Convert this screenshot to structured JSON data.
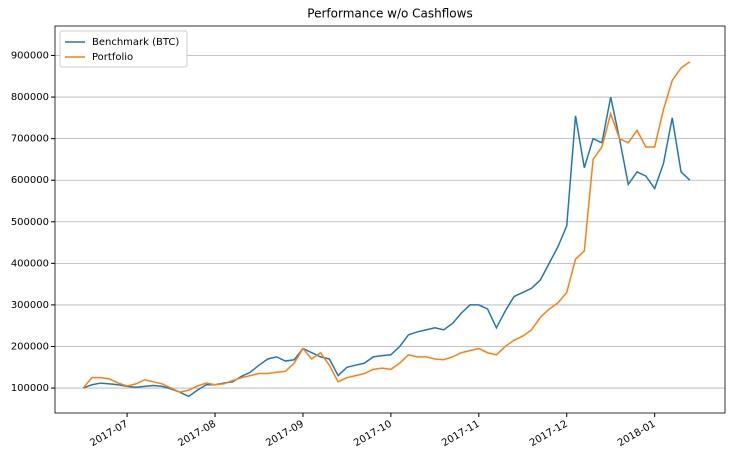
{
  "chart_data": {
    "type": "line",
    "title": "Performance w/o Cashflows",
    "x": [
      -0.5,
      -0.4,
      -0.3,
      -0.2,
      -0.1,
      0,
      0.1,
      0.2,
      0.3,
      0.4,
      0.5,
      0.6,
      0.7,
      0.8,
      0.9,
      1,
      1.1,
      1.2,
      1.3,
      1.4,
      1.5,
      1.6,
      1.7,
      1.8,
      1.9,
      2,
      2.1,
      2.2,
      2.3,
      2.4,
      2.5,
      2.6,
      2.7,
      2.8,
      2.9,
      3,
      3.1,
      3.2,
      3.3,
      3.4,
      3.5,
      3.6,
      3.7,
      3.8,
      3.9,
      4,
      4.1,
      4.2,
      4.3,
      4.4,
      4.5,
      4.6,
      4.7,
      4.8,
      4.9,
      5,
      5.1,
      5.2,
      5.3,
      5.4,
      5.5,
      5.6,
      5.7,
      5.8,
      5.9,
      6,
      6.1,
      6.2,
      6.3,
      6.4
    ],
    "series": [
      {
        "name": "Benchmark (BTC)",
        "color": "#1f77b4",
        "values": [
          100000,
          108000,
          112000,
          110000,
          108000,
          104000,
          102000,
          104000,
          106000,
          104000,
          98000,
          90000,
          80000,
          95000,
          108000,
          108000,
          112000,
          115000,
          128000,
          138000,
          155000,
          170000,
          175000,
          165000,
          168000,
          195000,
          185000,
          175000,
          170000,
          130000,
          150000,
          155000,
          160000,
          175000,
          178000,
          180000,
          200000,
          228000,
          235000,
          240000,
          245000,
          240000,
          255000,
          280000,
          300000,
          300000,
          290000,
          245000,
          285000,
          320000,
          330000,
          340000,
          360000,
          400000,
          440000,
          490000,
          755000,
          630000,
          700000,
          690000,
          800000,
          700000,
          590000,
          620000,
          610000,
          580000,
          640000,
          750000,
          620000,
          600000
        ]
      },
      {
        "name": "Portfolio",
        "color": "#ff7f0e",
        "values": [
          100000,
          125000,
          125000,
          122000,
          112000,
          105000,
          110000,
          120000,
          115000,
          110000,
          100000,
          90000,
          95000,
          105000,
          112000,
          108000,
          110000,
          118000,
          125000,
          130000,
          135000,
          135000,
          138000,
          140000,
          160000,
          195000,
          170000,
          185000,
          155000,
          115000,
          125000,
          130000,
          135000,
          145000,
          148000,
          145000,
          160000,
          180000,
          175000,
          175000,
          170000,
          168000,
          175000,
          185000,
          190000,
          195000,
          185000,
          180000,
          200000,
          215000,
          225000,
          240000,
          270000,
          290000,
          305000,
          330000,
          410000,
          430000,
          650000,
          680000,
          760000,
          700000,
          690000,
          720000,
          680000,
          680000,
          770000,
          840000,
          870000,
          885000
        ]
      }
    ],
    "xlim": [
      -0.82,
      6.8
    ],
    "xticks": [
      {
        "value": 0,
        "label": "2017-07"
      },
      {
        "value": 1,
        "label": "2017-08"
      },
      {
        "value": 2,
        "label": "2017-09"
      },
      {
        "value": 3,
        "label": "2017-10"
      },
      {
        "value": 4,
        "label": "2017-11"
      },
      {
        "value": 5,
        "label": "2017-12"
      },
      {
        "value": 6,
        "label": "2018-01"
      }
    ],
    "ylim": [
      40000,
      971000
    ],
    "yticks": [
      100000,
      200000,
      300000,
      400000,
      500000,
      600000,
      700000,
      800000,
      900000
    ],
    "grid": "y",
    "legend": "upper left"
  }
}
